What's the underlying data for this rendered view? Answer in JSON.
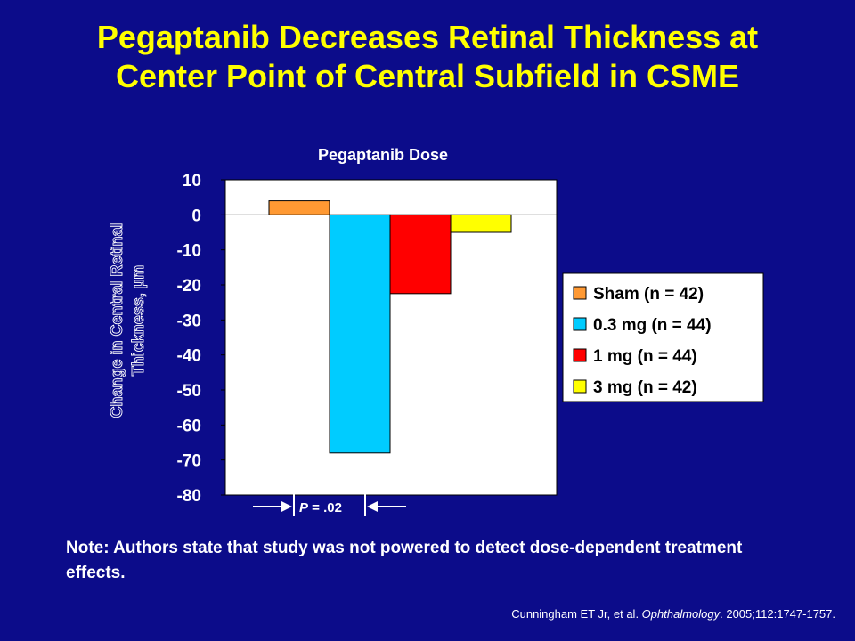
{
  "slide": {
    "title_line1": "Pegaptanib Decreases Retinal Thickness at",
    "title_line2": "Center Point of Central Subfield in CSME",
    "note": "Note: Authors state that study was not powered to detect dose-dependent treatment effects.",
    "citation": {
      "authors": "Cunningham ET Jr, et al. ",
      "journal": "Ophthalmology",
      "details": ". 2005;112:1747-1757."
    }
  },
  "colors": {
    "background": "#0c0c8a",
    "title": "#ffff00",
    "plot_background": "#ffffff"
  },
  "chart_data": {
    "type": "bar",
    "title": "Pegaptanib Dose",
    "ylabel": "Change in Central Retinal Thickness, µm",
    "ylabel_line1": "Change in Central Retinal",
    "ylabel_line2": "Thickness, µm",
    "xlabel": "",
    "ylim": [
      -80,
      10
    ],
    "yticks": [
      10,
      0,
      -10,
      -20,
      -30,
      -40,
      -50,
      -60,
      -70,
      -80
    ],
    "grid": false,
    "legend_position": "right",
    "series": [
      {
        "name": "Sham (n = 42)",
        "value": 4,
        "color": "#ff9933"
      },
      {
        "name": "0.3 mg (n = 44)",
        "value": -68,
        "color": "#00ccff"
      },
      {
        "name": "1 mg (n = 44)",
        "value": -22.5,
        "color": "#ff0000"
      },
      {
        "name": "3 mg (n = 42)",
        "value": -5,
        "color": "#ffff00"
      }
    ],
    "annotation": {
      "p_label": "P",
      "p_value": " = .02",
      "compares": [
        "Sham (n = 42)",
        "0.3 mg (n = 44)"
      ]
    }
  }
}
